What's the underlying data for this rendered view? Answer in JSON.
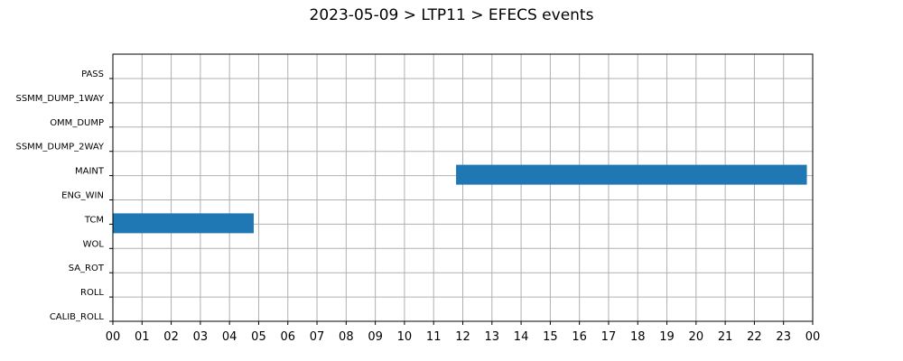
{
  "chart_data": {
    "type": "bar",
    "title": "2023-05-09 > LTP11 > EFECS events",
    "xlabel": "",
    "ylabel": "",
    "categories": [
      "PASS",
      "SSMM_DUMP_1WAY",
      "OMM_DUMP",
      "SSMM_DUMP_2WAY",
      "MAINT",
      "ENG_WIN",
      "TCM",
      "WOL",
      "SA_ROT",
      "ROLL",
      "CALIB_ROLL"
    ],
    "x_tick_labels": [
      "00",
      "01",
      "02",
      "03",
      "04",
      "05",
      "06",
      "07",
      "08",
      "09",
      "10",
      "11",
      "12",
      "13",
      "14",
      "15",
      "16",
      "17",
      "18",
      "19",
      "20",
      "21",
      "22",
      "23",
      "00"
    ],
    "xlim_hours": [
      0,
      24
    ],
    "grid": true,
    "bar_color": "#1f77b4",
    "events": [
      {
        "category": "MAINT",
        "start_hour": 11.77,
        "end_hour": 23.8
      },
      {
        "category": "TCM",
        "start_hour": 0.0,
        "end_hour": 4.83
      }
    ]
  }
}
